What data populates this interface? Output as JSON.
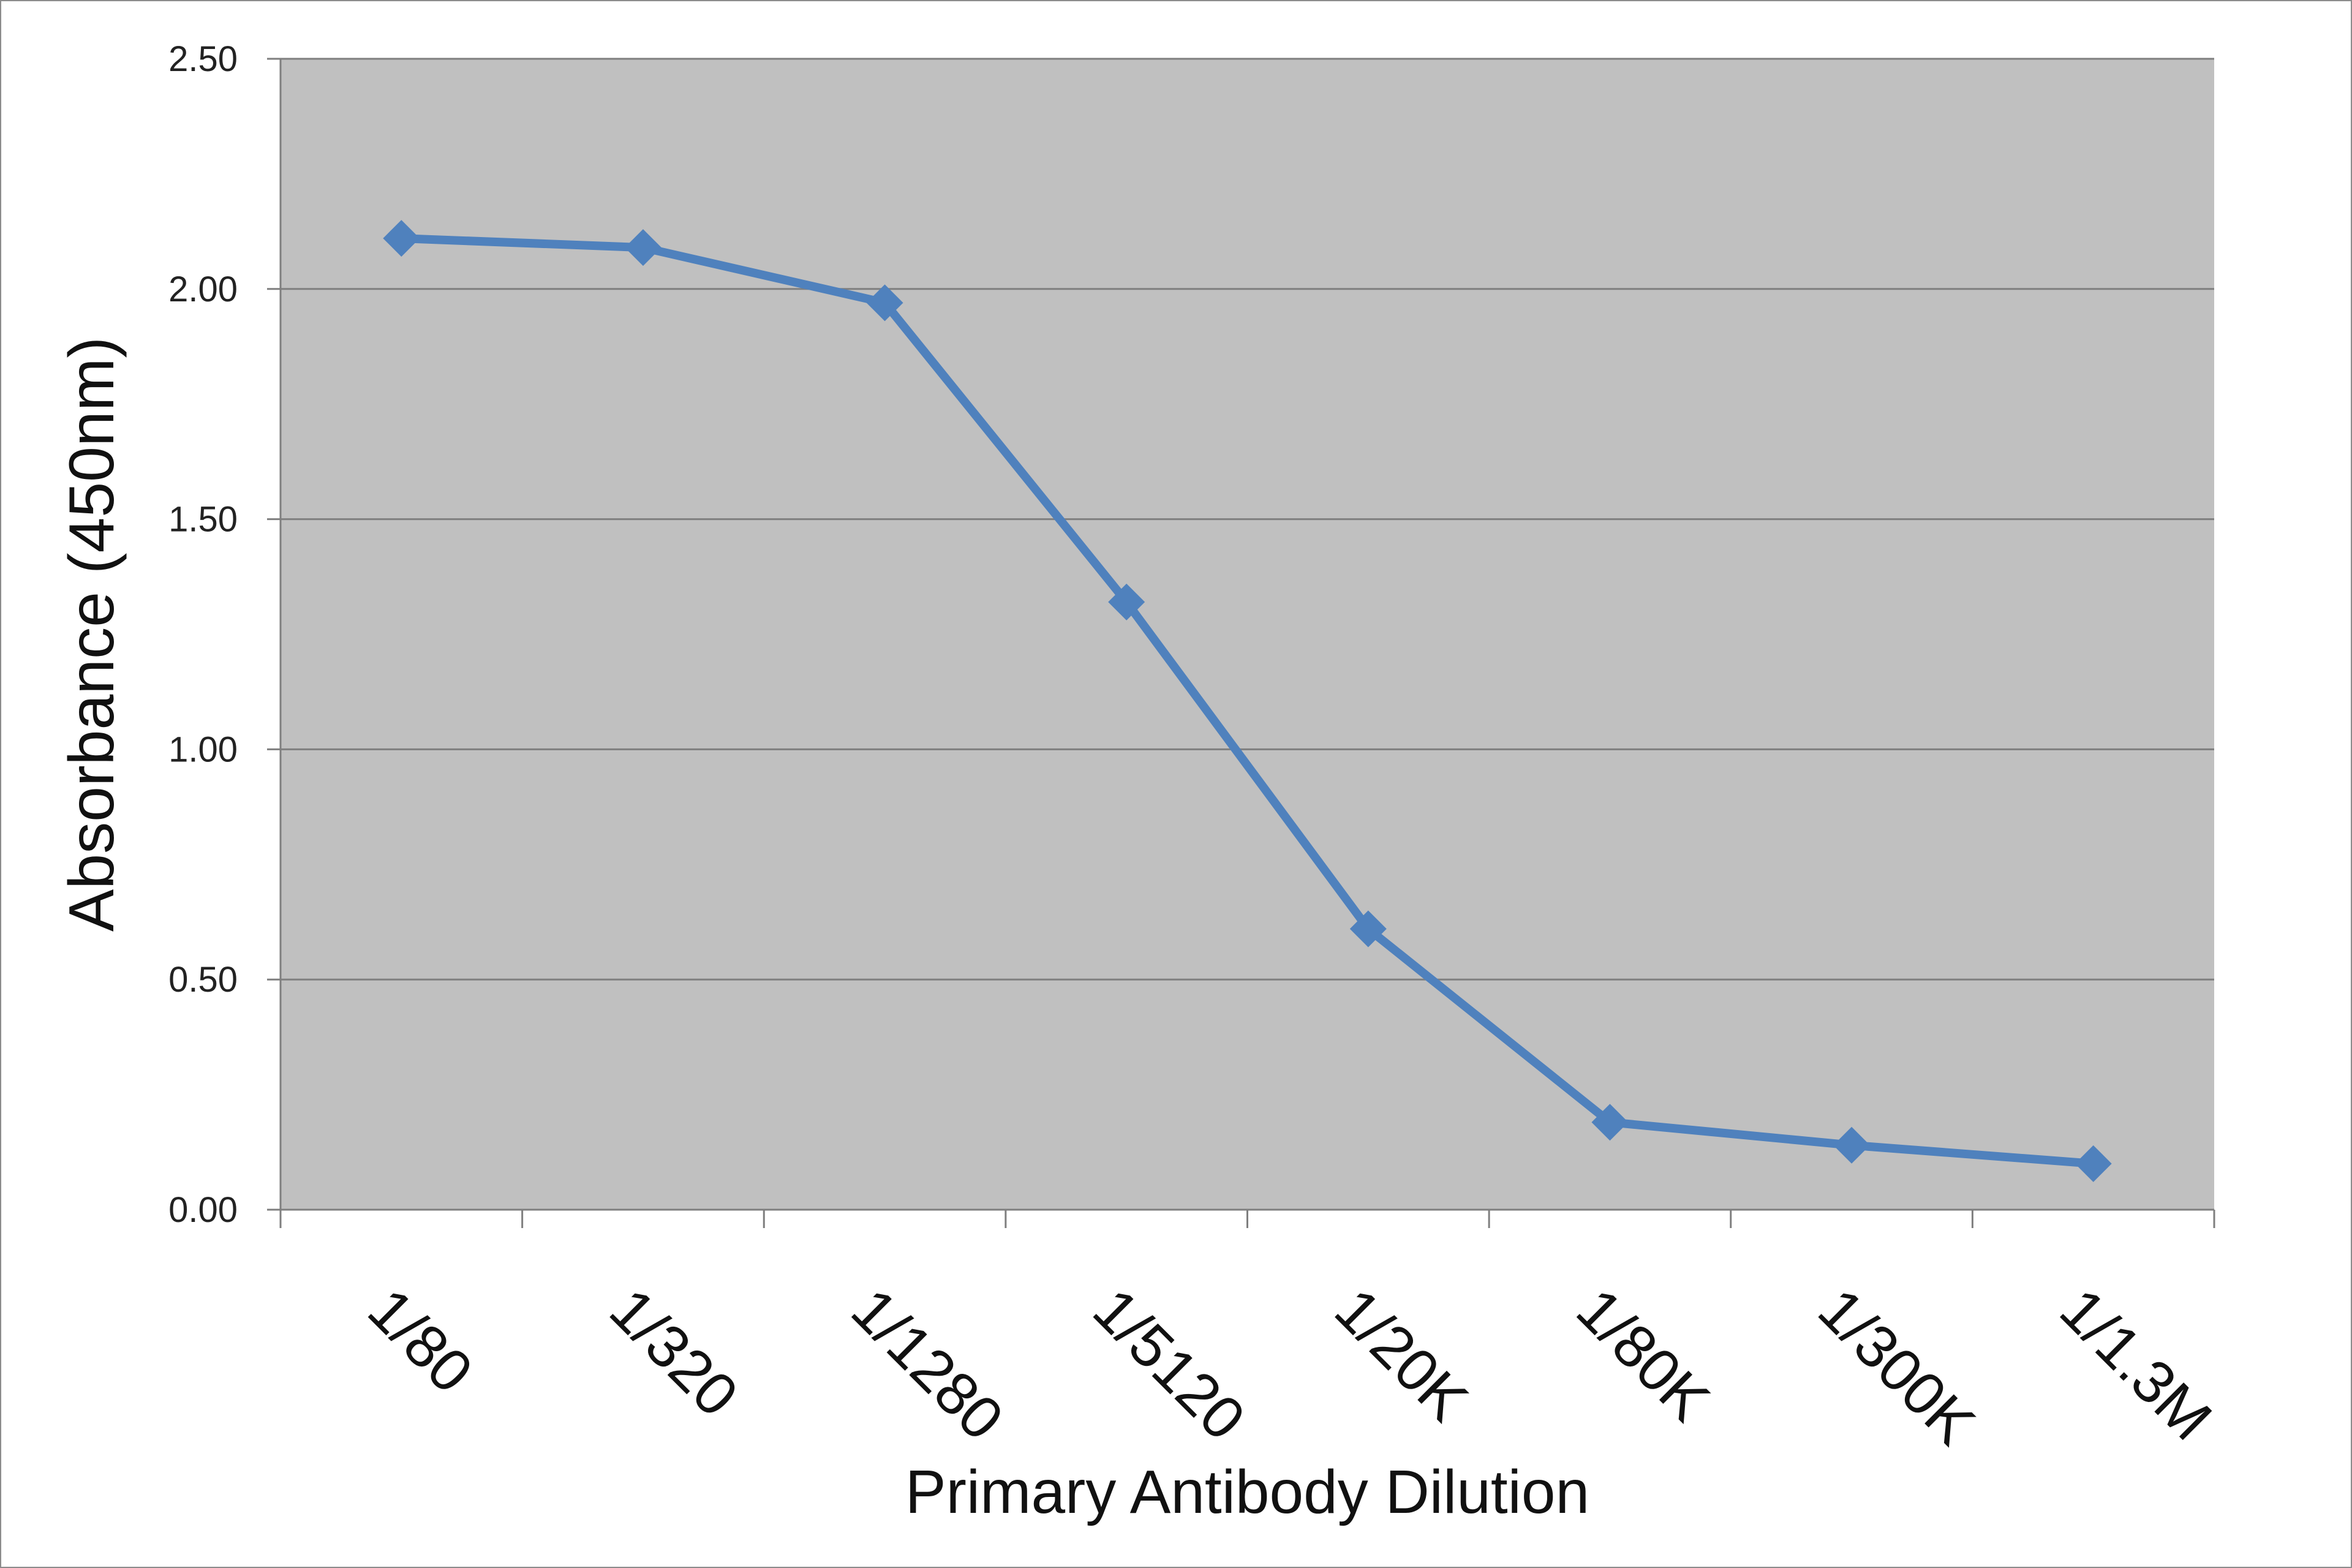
{
  "chart_data": {
    "type": "line",
    "title": "",
    "xlabel": "Primary Antibody Dilution",
    "ylabel": "Absorbance (450nm)",
    "categories": [
      "1/80",
      "1/320",
      "1/1280",
      "1/5120",
      "1/20K",
      "1/80K",
      "1/300K",
      "1/1.3M"
    ],
    "series": [
      {
        "values": [
          2.11,
          2.09,
          1.97,
          1.32,
          0.61,
          0.19,
          0.14,
          0.1
        ],
        "color": "#4f81bd",
        "marker": "diamond"
      }
    ],
    "ylim": [
      0,
      2.5
    ],
    "yticks": [
      0,
      0.5,
      1.0,
      1.5,
      2.0,
      2.5
    ],
    "ytick_labels": [
      "0.00",
      "0.50",
      "1.00",
      "1.50",
      "2.00",
      "2.50"
    ],
    "grid": true,
    "legend": "none",
    "colors": {
      "plot_background": "#c0c0c0",
      "gridline": "#7f7f7f",
      "frame_border": "#8c8c8c"
    }
  }
}
